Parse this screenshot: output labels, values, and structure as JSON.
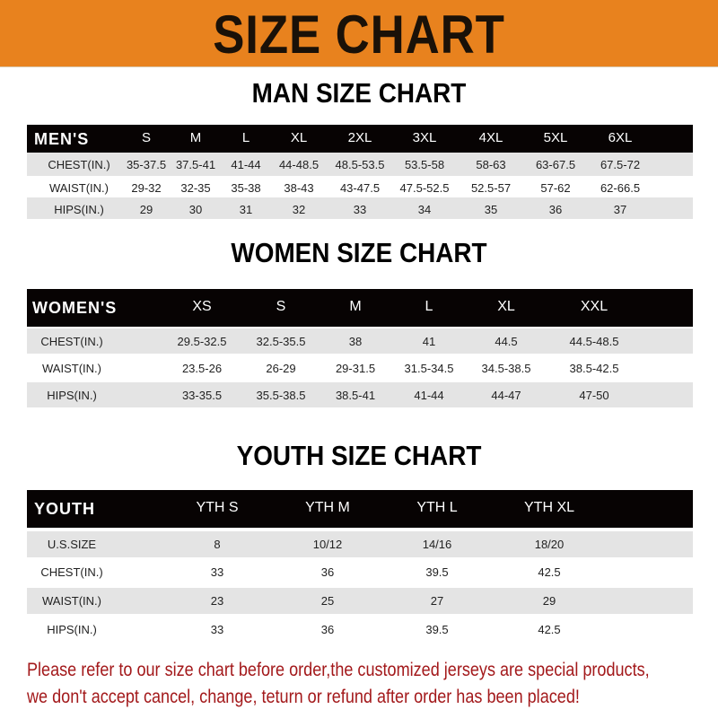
{
  "banner": {
    "title": "SIZE CHART",
    "color": "#e8821e"
  },
  "men": {
    "title": "MAN SIZE CHART",
    "header": [
      "MEN'S",
      "S",
      "M",
      "L",
      "XL",
      "2XL",
      "3XL",
      "4XL",
      "5XL",
      "6XL"
    ],
    "rows": [
      [
        "CHEST(IN.)",
        "35-37.5",
        "37.5-41",
        "41-44",
        "44-48.5",
        "48.5-53.5",
        "53.5-58",
        "58-63",
        "63-67.5",
        "67.5-72"
      ],
      [
        "WAIST(IN.)",
        "29-32",
        "32-35",
        "35-38",
        "38-43",
        "43-47.5",
        "47.5-52.5",
        "52.5-57",
        "57-62",
        "62-66.5"
      ],
      [
        "HIPS(IN.)",
        "29",
        "30",
        "31",
        "32",
        "33",
        "34",
        "35",
        "36",
        "37"
      ]
    ]
  },
  "women": {
    "title": "WOMEN SIZE CHART",
    "header": [
      "WOMEN'S",
      "XS",
      "S",
      "M",
      "L",
      "XL",
      "XXL"
    ],
    "rows": [
      [
        "CHEST(IN.)",
        "29.5-32.5",
        "32.5-35.5",
        "38",
        "41",
        "44.5",
        "44.5-48.5"
      ],
      [
        "WAIST(IN.)",
        "23.5-26",
        "26-29",
        "29-31.5",
        "31.5-34.5",
        "34.5-38.5",
        "38.5-42.5"
      ],
      [
        "HIPS(IN.)",
        "33-35.5",
        "35.5-38.5",
        "38.5-41",
        "41-44",
        "44-47",
        "47-50"
      ]
    ]
  },
  "youth": {
    "title": "YOUTH SIZE CHART",
    "header": [
      "YOUTH",
      "YTH S",
      "YTH M",
      "YTH L",
      "YTH XL"
    ],
    "rows": [
      [
        "U.S.SIZE",
        "8",
        "10/12",
        "14/16",
        "18/20"
      ],
      [
        "CHEST(IN.)",
        "33",
        "36",
        "39.5",
        "42.5"
      ],
      [
        "WAIST(IN.)",
        "23",
        "25",
        "27",
        "29"
      ],
      [
        "HIPS(IN.)",
        "33",
        "36",
        "39.5",
        "42.5"
      ]
    ]
  },
  "footer": {
    "line1": "Please refer to our size chart before order,the customized jerseys are special products,",
    "line2": "we don't accept cancel, change, teturn or refund after order has been placed!",
    "color": "#a3191b"
  }
}
